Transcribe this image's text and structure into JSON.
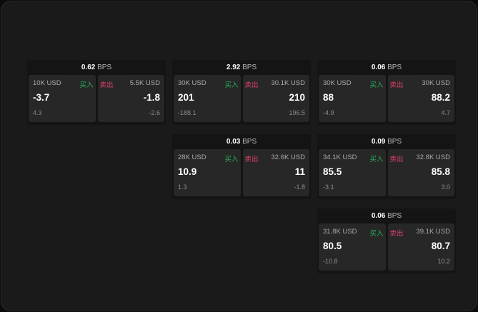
{
  "labels": {
    "buy": "买入",
    "sell": "卖出",
    "bps_unit": "BPS"
  },
  "colors": {
    "buy": "#27b35a",
    "sell": "#e0406a"
  },
  "cards": [
    {
      "bps": "0.62",
      "bid_qty": "10K USD",
      "bid": "-3.7",
      "bid_diff": "4.3",
      "ask_qty": "5.5K USD",
      "ask": "-1.8",
      "ask_diff": "-2.6"
    },
    {
      "bps": "2.92",
      "bid_qty": "30K USD",
      "bid": "201",
      "bid_diff": "-188.1",
      "ask_qty": "30.1K USD",
      "ask": "210",
      "ask_diff": "196.5"
    },
    {
      "bps": "0.06",
      "bid_qty": "30K USD",
      "bid": "88",
      "bid_diff": "-4.9",
      "ask_qty": "30K USD",
      "ask": "88.2",
      "ask_diff": "4.7"
    },
    {
      "bps": "0.03",
      "bid_qty": "28K USD",
      "bid": "10.9",
      "bid_diff": "1.3",
      "ask_qty": "32.6K USD",
      "ask": "11",
      "ask_diff": "-1.8"
    },
    {
      "bps": "0.09",
      "bid_qty": "34.1K USD",
      "bid": "85.5",
      "bid_diff": "-3.1",
      "ask_qty": "32.8K USD",
      "ask": "85.8",
      "ask_diff": "3.0"
    },
    {
      "bps": "0.06",
      "bid_qty": "31.8K USD",
      "bid": "80.5",
      "bid_diff": "-10.8",
      "ask_qty": "39.1K USD",
      "ask": "80.7",
      "ask_diff": "10.2"
    }
  ]
}
